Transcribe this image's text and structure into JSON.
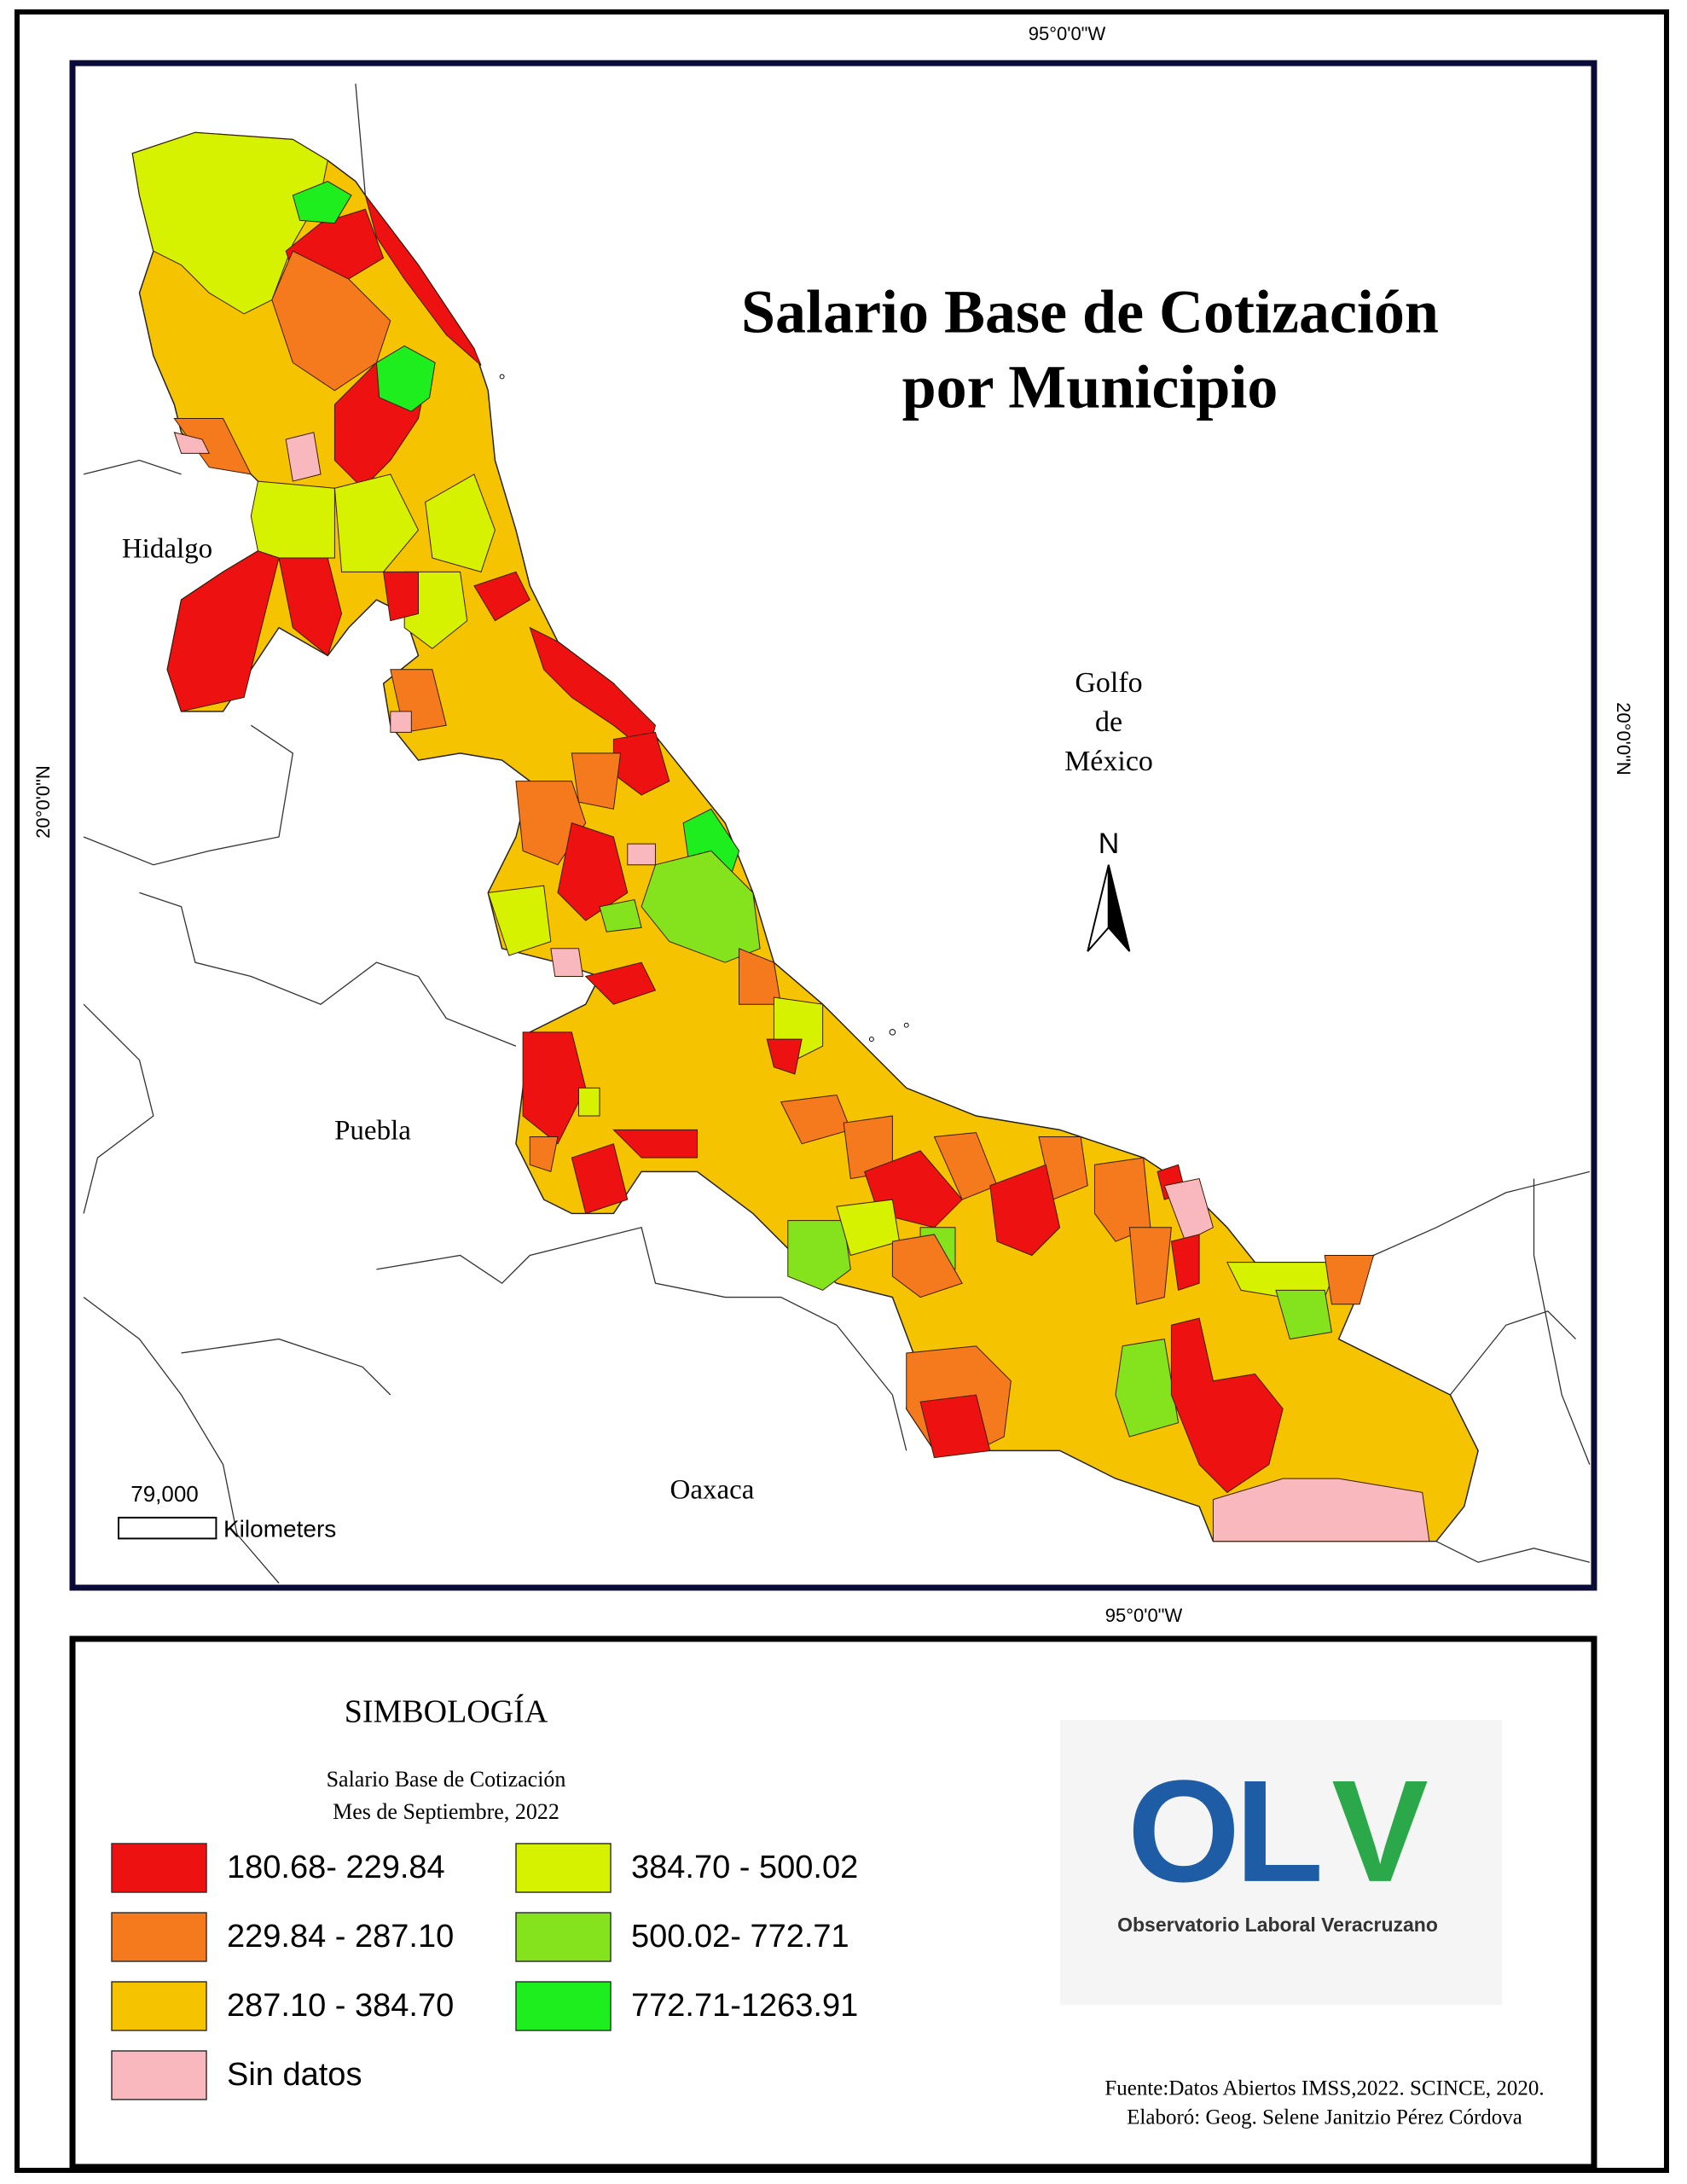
{
  "title": {
    "line1": "Salario Base de Cotización",
    "line2": "por Municipio"
  },
  "map": {
    "coord_top": "95°0'0\"W",
    "coord_bottom": "95°0'0\"W",
    "coord_left": "20°0'0\"N",
    "coord_right": "20°0'0\"N",
    "labels": {
      "hidalgo": "Hidalgo",
      "puebla": "Puebla",
      "oaxaca": "Oaxaca",
      "gulf": [
        "Golfo",
        "de",
        "México"
      ]
    },
    "north": "N",
    "scale": {
      "value_label": "79,000",
      "unit": "Kilometers"
    }
  },
  "legend": {
    "title": "SIMBOLOGÍA",
    "subtitle": [
      "Salario Base de Cotización",
      "Mes de Septiembre, 2022"
    ],
    "items": [
      {
        "label": "180.68- 229.84",
        "color": "#ee1111"
      },
      {
        "label": "229.84 - 287.10",
        "color": "#f57a1e"
      },
      {
        "label": "287.10 - 384.70",
        "color": "#f5c300"
      },
      {
        "label": "384.70 - 500.02",
        "color": "#d6f200"
      },
      {
        "label": "500.02- 772.71",
        "color": "#84e31c"
      },
      {
        "label": "772.71-1263.91",
        "color": "#1eee1e"
      },
      {
        "label": "Sin datos",
        "color": "#f9b8bd"
      }
    ]
  },
  "logo": {
    "letters": [
      "O",
      "L",
      "V"
    ],
    "name": "Observatorio Laboral Veracruzano"
  },
  "source": [
    "Fuente:Datos Abiertos IMSS,2022. SCINCE, 2020.",
    "Elaboró: Geog. Selene Janitzio Pérez Córdova"
  ]
}
